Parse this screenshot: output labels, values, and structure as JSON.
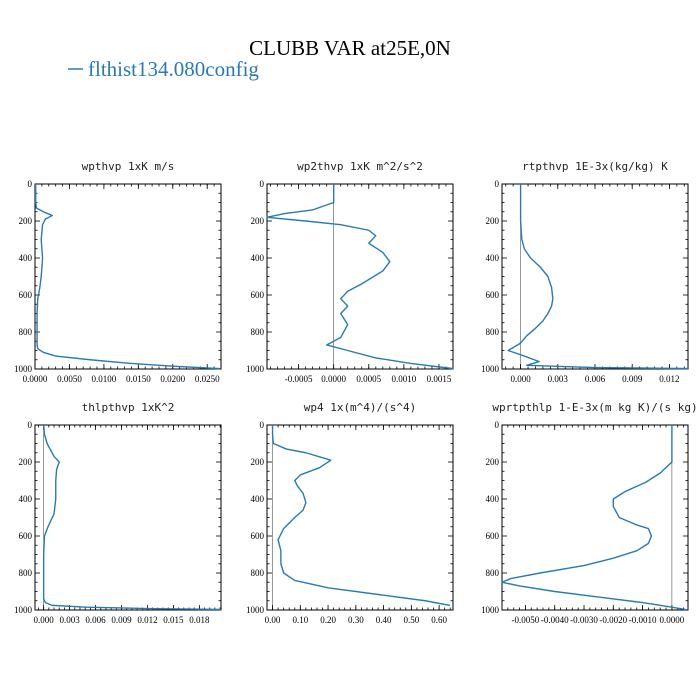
{
  "page": {
    "title": "CLUBB VAR at25E,0N",
    "legend": {
      "label": "flthist134.080config",
      "color": "#2a7ab0"
    }
  },
  "chart_data": [
    {
      "type": "line",
      "title": "wpthvp   1xK m/s",
      "xlim": [
        0,
        0.027
      ],
      "ylim": [
        1000,
        0
      ],
      "xticks": [
        0,
        0.005,
        0.01,
        0.015,
        0.02,
        0.025
      ],
      "xtick_labels": [
        "0.0000",
        "0.0050",
        "0.0100",
        "0.0150",
        "0.0200",
        "0.0250"
      ],
      "yticks": [
        0,
        200,
        400,
        600,
        800,
        1000
      ],
      "series": [
        {
          "color": "#2a7ab0",
          "x": [
            0.0001,
            0.0001,
            0.0002,
            0.0012,
            0.0025,
            0.0015,
            0.0011,
            0.0009,
            0.0011,
            0.0009,
            0.0007,
            0.0004,
            0.0003,
            0.0003,
            0.0003,
            0.0004,
            0.0012,
            0.003,
            0.008,
            0.014,
            0.02,
            0.0268
          ],
          "y": [
            0,
            100,
            130,
            150,
            170,
            190,
            220,
            300,
            400,
            500,
            560,
            620,
            700,
            800,
            870,
            890,
            910,
            930,
            950,
            970,
            985,
            998
          ]
        }
      ]
    },
    {
      "type": "line",
      "title": "wp2thvp   1xK m^2/s^2",
      "xlim": [
        -0.00095,
        0.0017
      ],
      "ylim": [
        1000,
        0
      ],
      "xticks": [
        -0.0005,
        0,
        0.0005,
        0.001,
        0.0015
      ],
      "xtick_labels": [
        "-0.0005",
        "0.0000",
        "0.0005",
        "0.0010",
        "0.0015"
      ],
      "yticks": [
        0,
        200,
        400,
        600,
        800,
        1000
      ],
      "series": [
        {
          "color": "#2a7ab0",
          "x": [
            0.0,
            0.0,
            -0.0003,
            -0.0007,
            -0.00095,
            -0.0004,
            0.0001,
            0.0005,
            0.0006,
            0.0005,
            0.0007,
            0.0008,
            0.0007,
            0.0004,
            0.0002,
            0.0001,
            0.0002,
            0.0001,
            0.0002,
            0.0001,
            -0.0001,
            0.0002,
            0.0006,
            0.0011,
            0.0017
          ],
          "y": [
            0,
            100,
            140,
            160,
            180,
            200,
            220,
            250,
            280,
            320,
            370,
            420,
            470,
            540,
            580,
            620,
            660,
            700,
            760,
            830,
            870,
            900,
            940,
            970,
            998
          ]
        }
      ]
    },
    {
      "type": "line",
      "title": "rtpthvp   1E-3x(kg/kg) K",
      "xlim": [
        -0.0015,
        0.0135
      ],
      "ylim": [
        1000,
        0
      ],
      "xticks": [
        0,
        0.003,
        0.006,
        0.009,
        0.012
      ],
      "xtick_labels": [
        "0.000",
        "0.003",
        "0.006",
        "0.009",
        "0.012"
      ],
      "yticks": [
        0,
        200,
        400,
        600,
        800,
        1000
      ],
      "series": [
        {
          "color": "#2a7ab0",
          "x": [
            0.0,
            0.0,
            0.0,
            0.0001,
            0.0003,
            0.0008,
            0.0016,
            0.0022,
            0.0025,
            0.0026,
            0.0025,
            0.0022,
            0.0018,
            0.0012,
            0.0005,
            0.0,
            -0.001,
            0.0003,
            0.0015,
            0.0005,
            0.006,
            0.0135
          ],
          "y": [
            0,
            100,
            200,
            300,
            350,
            400,
            450,
            500,
            560,
            620,
            660,
            700,
            740,
            780,
            820,
            860,
            900,
            930,
            960,
            980,
            992,
            998
          ]
        }
      ]
    },
    {
      "type": "line",
      "title": "thlpthvp   1xK^2",
      "xlim": [
        -0.001,
        0.0205
      ],
      "ylim": [
        1000,
        0
      ],
      "xticks": [
        0,
        0.003,
        0.006,
        0.009,
        0.012,
        0.015,
        0.018
      ],
      "xtick_labels": [
        "0.000",
        "0.003",
        "0.006",
        "0.009",
        "0.012",
        "0.015",
        "0.018"
      ],
      "yticks": [
        0,
        200,
        400,
        600,
        800,
        1000
      ],
      "series": [
        {
          "color": "#2a7ab0",
          "x": [
            0.0,
            0.0001,
            0.0004,
            0.0012,
            0.0018,
            0.0015,
            0.0014,
            0.0014,
            0.0012,
            0.0005,
            0.0001,
            0.0,
            0.0,
            0.0,
            0.0,
            0.0002,
            0.001,
            0.005,
            0.012,
            0.0205
          ],
          "y": [
            0,
            50,
            100,
            170,
            200,
            240,
            300,
            400,
            480,
            550,
            600,
            700,
            800,
            880,
            940,
            960,
            975,
            985,
            992,
            997
          ]
        }
      ]
    },
    {
      "type": "line",
      "title": "wp4   1x(m^4)/(s^4)",
      "xlim": [
        -0.02,
        0.65
      ],
      "ylim": [
        1000,
        0
      ],
      "xticks": [
        0,
        0.1,
        0.2,
        0.3,
        0.4,
        0.5,
        0.6
      ],
      "xtick_labels": [
        "0.00",
        "0.10",
        "0.20",
        "0.30",
        "0.40",
        "0.50",
        "0.60"
      ],
      "yticks": [
        0,
        200,
        400,
        600,
        800,
        1000
      ],
      "series": [
        {
          "color": "#2a7ab0",
          "x": [
            0.0,
            0.0,
            0.003,
            0.05,
            0.12,
            0.21,
            0.17,
            0.1,
            0.08,
            0.09,
            0.11,
            0.12,
            0.11,
            0.08,
            0.04,
            0.02,
            0.03,
            0.03,
            0.04,
            0.08,
            0.2,
            0.4,
            0.55,
            0.64
          ],
          "y": [
            0,
            50,
            100,
            130,
            150,
            190,
            230,
            270,
            300,
            330,
            370,
            420,
            460,
            500,
            560,
            620,
            680,
            750,
            800,
            840,
            880,
            920,
            950,
            975
          ]
        }
      ]
    },
    {
      "type": "line",
      "title": "wprtpthlp   1-E-3x(m kg K)/(s kg)",
      "xlim": [
        -0.0058,
        0.00055
      ],
      "ylim": [
        1000,
        0
      ],
      "xticks": [
        -0.005,
        -0.004,
        -0.003,
        -0.002,
        -0.001,
        0
      ],
      "xtick_labels": [
        "-0.0050",
        "-0.0040",
        "-0.0030",
        "-0.0020",
        "-0.0010",
        "0.0000"
      ],
      "yticks": [
        0,
        200,
        400,
        600,
        800,
        1000
      ],
      "series": [
        {
          "color": "#2a7ab0",
          "x": [
            0.0,
            0.0,
            0.0,
            -0.0004,
            -0.0009,
            -0.0016,
            -0.002,
            -0.002,
            -0.0018,
            -0.0012,
            -0.0008,
            -0.0007,
            -0.0008,
            -0.0012,
            -0.002,
            -0.003,
            -0.0045,
            -0.0055,
            -0.0058,
            -0.0052,
            -0.004,
            -0.0025,
            -0.001,
            0.0,
            0.0005
          ],
          "y": [
            0,
            100,
            200,
            260,
            310,
            360,
            400,
            440,
            500,
            540,
            560,
            600,
            640,
            680,
            720,
            760,
            800,
            830,
            850,
            870,
            900,
            930,
            960,
            985,
            998
          ]
        }
      ]
    }
  ]
}
